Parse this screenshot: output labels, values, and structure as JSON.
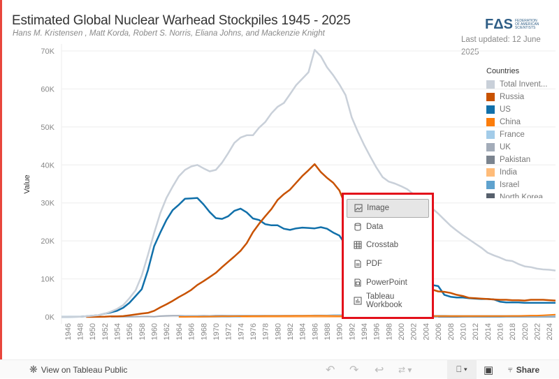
{
  "header": {
    "title": "Estimated Global Nuclear Warhead Stockpiles 1945 - 2025",
    "subtitle": "Hans M. Kristensen , Matt Korda, Robert S. Norris, Eliana Johns, and Mackenzie Knight",
    "logo_text": "FAS",
    "logo_sub": "FEDERATION OF AMERICAN SCIENTISTS",
    "last_updated": "Last updated: 12 June 2025"
  },
  "legend": {
    "title": "Countries",
    "items": [
      {
        "label": "Total Invent...",
        "color": "#c9d0d9"
      },
      {
        "label": "Russia",
        "color": "#c85200"
      },
      {
        "label": "US",
        "color": "#1170aa"
      },
      {
        "label": "China",
        "color": "#fc7d0b"
      },
      {
        "label": "France",
        "color": "#a3cce9"
      },
      {
        "label": "UK",
        "color": "#a3acb9"
      },
      {
        "label": "Pakistan",
        "color": "#7b848f"
      },
      {
        "label": "India",
        "color": "#ffbc79"
      },
      {
        "label": "Israel",
        "color": "#5fa2ce"
      },
      {
        "label": "North Korea",
        "color": "#57606c"
      }
    ]
  },
  "chart_data": {
    "type": "line",
    "title": "Estimated Global Nuclear Warhead Stockpiles 1945 - 2025",
    "xlabel": "",
    "ylabel": "Value",
    "xlim": [
      1945,
      2025
    ],
    "ylim": [
      0,
      70000
    ],
    "y_ticks": [
      "0K",
      "10K",
      "20K",
      "30K",
      "40K",
      "50K",
      "60K",
      "70K"
    ],
    "x_ticks": [
      "1946",
      "1948",
      "1950",
      "1952",
      "1954",
      "1956",
      "1958",
      "1960",
      "1962",
      "1964",
      "1966",
      "1968",
      "1970",
      "1972",
      "1974",
      "1976",
      "1978",
      "1980",
      "1982",
      "1984",
      "1986",
      "1988",
      "1990",
      "1992",
      "1994",
      "1996",
      "1998",
      "2000",
      "2002",
      "2004",
      "2006",
      "2008",
      "2010",
      "2012",
      "2014",
      "2016",
      "2018",
      "2020",
      "2022",
      "2024"
    ],
    "grid": true,
    "legend_position": "right",
    "series": [
      {
        "name": "Total Invent...",
        "color": "#c9d0d9",
        "start_year": 1945,
        "values": [
          2,
          9,
          13,
          50,
          170,
          300,
          440,
          840,
          1400,
          2100,
          3100,
          4900,
          7000,
          10900,
          16300,
          22100,
          27300,
          31300,
          34300,
          37000,
          38700,
          39600,
          40000,
          39100,
          38300,
          38700,
          40600,
          43100,
          45800,
          47200,
          47800,
          47800,
          49800,
          51300,
          53600,
          55300,
          56300,
          58600,
          61000,
          62700,
          64400,
          70300,
          68600,
          65700,
          63600,
          61200,
          58400,
          52500,
          48700,
          45300,
          42200,
          39300,
          36800,
          35600,
          35100,
          34400,
          33600,
          32300,
          31100,
          29900,
          28600,
          27200,
          25600,
          24000,
          22700,
          21500,
          20400,
          19300,
          18200,
          16900,
          16200,
          15600,
          14900,
          14700,
          13900,
          13300,
          13100,
          12700,
          12500,
          12400,
          12200
        ]
      },
      {
        "name": "Russia",
        "color": "#c85200",
        "start_year": 1949,
        "values": [
          1,
          5,
          25,
          50,
          120,
          150,
          200,
          400,
          650,
          870,
          1050,
          1600,
          2500,
          3300,
          4200,
          5200,
          6100,
          7100,
          8400,
          9400,
          10500,
          11600,
          13100,
          14500,
          15900,
          17400,
          19400,
          22300,
          24500,
          26500,
          28400,
          30800,
          32300,
          33500,
          35300,
          37100,
          38600,
          40200,
          38100,
          36600,
          35300,
          33300,
          29300,
          26900,
          24700,
          21800,
          18700,
          16000,
          13600,
          12000,
          11200,
          10200,
          9900,
          9500,
          8900,
          8000,
          7200,
          6700,
          6600,
          6300,
          5800,
          5500,
          5000,
          4900,
          4800,
          4700,
          4600,
          4500,
          4500,
          4400,
          4400,
          4300,
          4500,
          4500,
          4500,
          4400,
          4300
        ]
      },
      {
        "name": "US",
        "color": "#1170aa",
        "start_year": 1945,
        "values": [
          2,
          9,
          13,
          50,
          170,
          300,
          440,
          840,
          1170,
          1600,
          2400,
          3700,
          5500,
          7300,
          12300,
          18600,
          22200,
          25500,
          28100,
          29500,
          31100,
          31200,
          31300,
          29600,
          27600,
          26000,
          25800,
          26500,
          27900,
          28500,
          27500,
          25900,
          25500,
          24400,
          24100,
          24100,
          23200,
          22900,
          23300,
          23500,
          23400,
          23300,
          23600,
          23200,
          22200,
          21400,
          19000,
          13700,
          11500,
          10900,
          10900,
          10800,
          10600,
          10400,
          10300,
          10600,
          10500,
          10600,
          10200,
          8600,
          8400,
          8100,
          5800,
          5300,
          5100,
          5100,
          4900,
          4800,
          4700,
          4700,
          4600,
          4000,
          3800,
          3800,
          3800,
          3700,
          3700,
          3700,
          3700,
          3700,
          3700
        ]
      },
      {
        "name": "China",
        "color": "#fc7d0b",
        "start_year": 1964,
        "values": [
          1,
          5,
          20,
          25,
          40,
          75,
          100,
          130,
          150,
          170,
          185,
          190,
          200,
          210,
          220,
          230,
          240,
          250,
          260,
          270,
          280,
          290,
          300,
          290,
          270,
          250,
          240,
          240,
          240,
          240,
          240,
          240,
          240,
          240,
          240,
          240,
          240,
          240,
          240,
          240,
          240,
          240,
          240,
          240,
          240,
          240,
          240,
          240,
          240,
          240,
          240,
          240,
          240,
          240,
          250,
          260,
          290,
          350,
          350,
          410,
          500,
          600
        ]
      },
      {
        "name": "France",
        "color": "#a3cce9",
        "start_year": 1964,
        "values": [
          4,
          32,
          36,
          36,
          36,
          36,
          36,
          45,
          70,
          116,
          145,
          188,
          212,
          228,
          235,
          250,
          260,
          274,
          279,
          280,
          360,
          355,
          420,
          411,
          404,
          504,
          538,
          538,
          538,
          482,
          482,
          450,
          450,
          450,
          450,
          350,
          350,
          350,
          350,
          350,
          350,
          350,
          350,
          350,
          300,
          300,
          300,
          300,
          300,
          300,
          300,
          300,
          300,
          300,
          300,
          290,
          290,
          290,
          290,
          290,
          290,
          290
        ]
      },
      {
        "name": "UK",
        "color": "#a3acb9",
        "start_year": 1953,
        "values": [
          1,
          10,
          14,
          21,
          53,
          94,
          105,
          30,
          205,
          280,
          310,
          310,
          270,
          270,
          280,
          308,
          280,
          375,
          375,
          350,
          350,
          350,
          350,
          350,
          350,
          350,
          350,
          350,
          350,
          350,
          350,
          350,
          350,
          300,
          300,
          300,
          300,
          300,
          300,
          300,
          280,
          280,
          280,
          280,
          280,
          225,
          225,
          225,
          225,
          225,
          225,
          225,
          225,
          225,
          225,
          225,
          225,
          225,
          225,
          225,
          225,
          215,
          215,
          215,
          215,
          215,
          215,
          215,
          215,
          225,
          225,
          225,
          225
        ]
      },
      {
        "name": "Pakistan",
        "color": "#7b848f",
        "start_year": 1998,
        "values": [
          5,
          8,
          13,
          20,
          30,
          40,
          50,
          60,
          70,
          80,
          90,
          100,
          110,
          120,
          130,
          140,
          150,
          160,
          170,
          170,
          170,
          170,
          170,
          170,
          170,
          170,
          170,
          170
        ]
      },
      {
        "name": "India",
        "color": "#ffbc79",
        "start_year": 1974,
        "values": [
          1,
          1,
          1,
          1,
          1,
          1,
          1,
          1,
          1,
          1,
          1,
          1,
          1,
          1,
          1,
          1,
          1,
          1,
          1,
          1,
          1,
          1,
          1,
          1,
          1,
          30,
          40,
          50,
          60,
          70,
          80,
          90,
          100,
          110,
          120,
          130,
          140,
          150,
          160,
          170,
          180,
          180,
          180,
          180,
          180,
          180,
          180,
          180,
          180,
          180,
          180,
          180
        ]
      },
      {
        "name": "Israel",
        "color": "#5fa2ce",
        "start_year": 1967,
        "values": [
          2,
          6,
          10,
          15,
          20,
          25,
          30,
          35,
          40,
          45,
          50,
          55,
          60,
          60,
          60,
          60,
          60,
          60,
          60,
          60,
          60,
          60,
          60,
          60,
          60,
          60,
          60,
          60,
          60,
          60,
          60,
          60,
          60,
          60,
          80,
          80,
          80,
          80,
          80,
          80,
          80,
          80,
          80,
          80,
          80,
          80,
          80,
          80,
          80,
          80,
          90,
          90,
          90,
          90,
          90,
          90,
          90,
          90,
          90
        ]
      },
      {
        "name": "North Korea",
        "color": "#57606c",
        "start_year": 2006,
        "values": [
          2,
          4,
          6,
          8,
          10,
          12,
          14,
          16,
          18,
          20,
          20,
          30,
          30,
          40,
          40,
          40,
          50,
          50,
          50,
          50
        ]
      }
    ]
  },
  "footer": {
    "view_public": "View on Tableau Public",
    "share": "Share"
  },
  "download_menu": {
    "items": [
      {
        "label": "Image",
        "icon": "image-icon"
      },
      {
        "label": "Data",
        "icon": "database-icon"
      },
      {
        "label": "Crosstab",
        "icon": "table-icon"
      },
      {
        "label": "PDF",
        "icon": "pdf-icon"
      },
      {
        "label": "PowerPoint",
        "icon": "ppt-icon"
      },
      {
        "label": "Tableau Workbook",
        "icon": "workbook-icon"
      }
    ],
    "selected": "Image"
  }
}
